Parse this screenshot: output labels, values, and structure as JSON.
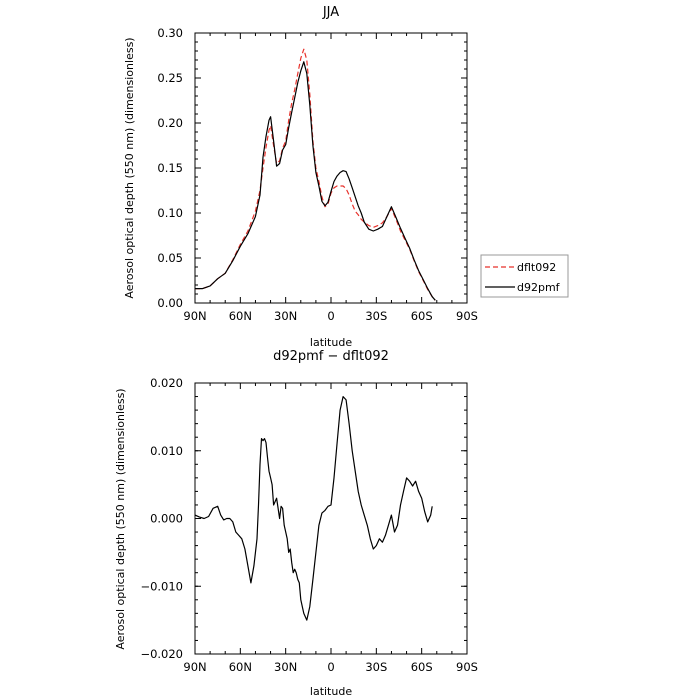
{
  "chart_data": [
    {
      "type": "line",
      "title": "JJA",
      "xlabel": "latitude",
      "ylabel": "Aerosol optical depth (550 nm) (dimensionless)",
      "xlim": [
        90,
        -90
      ],
      "ylim": [
        0,
        0.3
      ],
      "xtick_values": [
        90,
        60,
        30,
        0,
        -30,
        -60,
        -90
      ],
      "xtick_labels": [
        "90N",
        "60N",
        "30N",
        "0",
        "30S",
        "60S",
        "90S"
      ],
      "ytick_values": [
        0,
        0.05,
        0.1,
        0.15,
        0.2,
        0.25,
        0.3
      ],
      "ytick_labels": [
        "0.00",
        "0.05",
        "0.10",
        "0.15",
        "0.20",
        "0.25",
        "0.30"
      ],
      "legend_position": "right",
      "series": [
        {
          "name": "dflt092",
          "color": "#e8322b",
          "style": "dashed",
          "x": [
            90,
            85,
            80,
            75,
            70,
            65,
            60,
            55,
            50,
            47,
            45,
            43,
            41,
            40,
            38,
            36,
            34,
            32,
            30,
            28,
            26,
            24,
            22,
            20,
            18,
            16,
            14,
            12,
            10,
            8,
            6,
            4,
            2,
            0,
            -2,
            -4,
            -6,
            -8,
            -10,
            -12,
            -14,
            -16,
            -18,
            -20,
            -22,
            -25,
            -28,
            -31,
            -34,
            -37,
            -40,
            -43,
            -46,
            -49,
            -52,
            -55,
            -58,
            -61,
            -64,
            -67,
            -69
          ],
          "y": [
            0.016,
            0.016,
            0.019,
            0.027,
            0.033,
            0.048,
            0.065,
            0.08,
            0.102,
            0.125,
            0.15,
            0.173,
            0.192,
            0.197,
            0.175,
            0.155,
            0.158,
            0.172,
            0.18,
            0.203,
            0.222,
            0.237,
            0.255,
            0.272,
            0.282,
            0.27,
            0.232,
            0.18,
            0.15,
            0.135,
            0.118,
            0.107,
            0.11,
            0.122,
            0.128,
            0.13,
            0.13,
            0.13,
            0.127,
            0.12,
            0.11,
            0.102,
            0.098,
            0.093,
            0.09,
            0.086,
            0.084,
            0.086,
            0.089,
            0.096,
            0.105,
            0.093,
            0.08,
            0.07,
            0.06,
            0.047,
            0.035,
            0.025,
            0.015,
            0.007,
            0.003
          ]
        },
        {
          "name": "d92pmf",
          "color": "#000000",
          "style": "solid",
          "x": [
            90,
            85,
            80,
            75,
            70,
            65,
            60,
            55,
            50,
            47,
            45,
            43,
            41,
            40,
            38,
            36,
            34,
            32,
            30,
            28,
            26,
            24,
            22,
            20,
            18,
            16,
            14,
            12,
            10,
            8,
            6,
            4,
            2,
            0,
            -2,
            -4,
            -6,
            -8,
            -10,
            -12,
            -14,
            -16,
            -18,
            -20,
            -22,
            -25,
            -28,
            -31,
            -34,
            -37,
            -40,
            -43,
            -46,
            -49,
            -52,
            -55,
            -58,
            -61,
            -64,
            -67,
            -69
          ],
          "y": [
            0.016,
            0.016,
            0.019,
            0.027,
            0.033,
            0.047,
            0.063,
            0.077,
            0.096,
            0.12,
            0.162,
            0.185,
            0.203,
            0.207,
            0.18,
            0.152,
            0.155,
            0.17,
            0.176,
            0.195,
            0.212,
            0.228,
            0.245,
            0.258,
            0.268,
            0.255,
            0.22,
            0.175,
            0.145,
            0.13,
            0.113,
            0.108,
            0.112,
            0.124,
            0.135,
            0.141,
            0.145,
            0.147,
            0.146,
            0.138,
            0.128,
            0.118,
            0.108,
            0.1,
            0.09,
            0.082,
            0.08,
            0.082,
            0.085,
            0.096,
            0.107,
            0.095,
            0.083,
            0.072,
            0.061,
            0.048,
            0.036,
            0.026,
            0.016,
            0.007,
            0.003
          ]
        }
      ]
    },
    {
      "type": "line",
      "title": "d92pmf − dflt092",
      "xlabel": "latitude",
      "ylabel": "Aerosol optical depth (550 nm) (dimensionless)",
      "xlim": [
        90,
        -90
      ],
      "ylim": [
        -0.02,
        0.02
      ],
      "xtick_values": [
        90,
        60,
        30,
        0,
        -30,
        -60,
        -90
      ],
      "xtick_labels": [
        "90N",
        "60N",
        "30N",
        "0",
        "30S",
        "60S",
        "90S"
      ],
      "ytick_values": [
        -0.02,
        -0.01,
        0,
        0.01,
        0.02
      ],
      "ytick_labels": [
        "−0.020",
        "−0.010",
        "0.000",
        "0.010",
        "0.020"
      ],
      "series": [
        {
          "color": "#000000",
          "style": "solid",
          "x": [
            90,
            87,
            84,
            81,
            78,
            75,
            73,
            71,
            69,
            67,
            65,
            63,
            61,
            59,
            57,
            55,
            53,
            51,
            49,
            48,
            47,
            46,
            45,
            44,
            43,
            42,
            41,
            40,
            39,
            38,
            37,
            36,
            35,
            34,
            33,
            32,
            31,
            30,
            29,
            28,
            27,
            26,
            25,
            24,
            23,
            22,
            21,
            20,
            19,
            18,
            17,
            16,
            14,
            12,
            10,
            8,
            6,
            4,
            2,
            0,
            -2,
            -4,
            -6,
            -8,
            -10,
            -12,
            -14,
            -16,
            -18,
            -20,
            -22,
            -24,
            -26,
            -28,
            -30,
            -32,
            -34,
            -36,
            -38,
            -40,
            -42,
            -44,
            -46,
            -48,
            -50,
            -52,
            -54,
            -56,
            -58,
            -60,
            -62,
            -64,
            -66,
            -67
          ],
          "y": [
            0.0005,
            0.0002,
            0.0,
            0.0003,
            0.0015,
            0.0018,
            0.0005,
            -0.0002,
            0.0,
            0.0,
            -0.0005,
            -0.002,
            -0.0025,
            -0.003,
            -0.0045,
            -0.007,
            -0.0095,
            -0.007,
            -0.003,
            0.002,
            0.008,
            0.0118,
            0.0115,
            0.0118,
            0.0112,
            0.009,
            0.007,
            0.006,
            0.005,
            0.002,
            0.0025,
            0.003,
            0.0015,
            0.0,
            0.0018,
            0.0015,
            -0.001,
            -0.002,
            -0.003,
            -0.005,
            -0.0045,
            -0.0065,
            -0.008,
            -0.0075,
            -0.008,
            -0.009,
            -0.0095,
            -0.012,
            -0.013,
            -0.014,
            -0.0145,
            -0.015,
            -0.013,
            -0.009,
            -0.005,
            -0.001,
            0.0008,
            0.0012,
            0.0018,
            0.002,
            0.006,
            0.011,
            0.016,
            0.018,
            0.0175,
            0.014,
            0.01,
            0.007,
            0.004,
            0.002,
            0.0005,
            -0.001,
            -0.003,
            -0.0045,
            -0.004,
            -0.003,
            -0.0035,
            -0.0025,
            -0.001,
            0.0005,
            -0.002,
            -0.001,
            0.002,
            0.004,
            0.006,
            0.0055,
            0.0048,
            0.0055,
            0.004,
            0.003,
            0.001,
            -0.0005,
            0.0005,
            0.0018
          ]
        }
      ]
    }
  ]
}
